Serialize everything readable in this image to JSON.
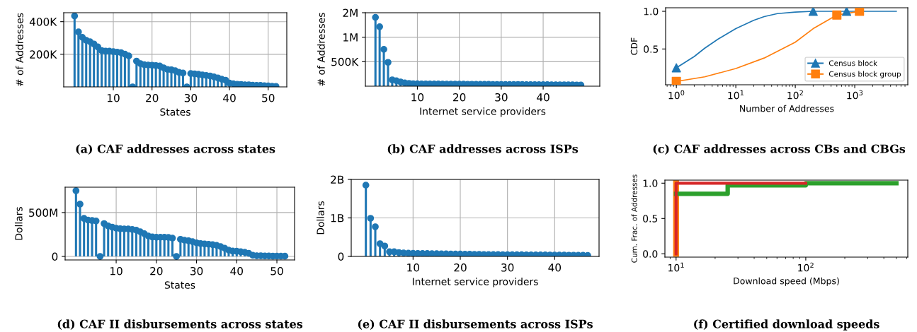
{
  "chart_data": [
    {
      "type": "lollipop",
      "title": "(a) CAF addresses across states",
      "xlabel": "States",
      "ylabel": "# of Addresses",
      "grid": true,
      "x": [
        0,
        1,
        2,
        3,
        4,
        5,
        6,
        7,
        8,
        9,
        10,
        11,
        12,
        13,
        14,
        15,
        16,
        17,
        18,
        19,
        20,
        21,
        22,
        23,
        24,
        25,
        26,
        27,
        28,
        29,
        30,
        31,
        32,
        33,
        34,
        35,
        36,
        37,
        38,
        39,
        40,
        41,
        42,
        43,
        44,
        45,
        46,
        47,
        48,
        49,
        50,
        51,
        52
      ],
      "values": [
        435000,
        337000,
        304000,
        286000,
        277000,
        263000,
        245000,
        223000,
        219000,
        219000,
        216000,
        213000,
        210000,
        201000,
        190000,
        0,
        158000,
        143000,
        136000,
        134000,
        133000,
        131000,
        128000,
        117000,
        107000,
        105000,
        99000,
        89000,
        85000,
        0,
        82000,
        80000,
        77000,
        73000,
        70000,
        67000,
        61000,
        55000,
        47000,
        41000,
        23000,
        19000,
        16000,
        15000,
        13000,
        12000,
        10000,
        9000,
        9000,
        7000,
        6000,
        4000,
        3000
      ],
      "color": "#1f77b4",
      "xlim": [
        -2.8,
        54.8
      ],
      "ylim": [
        0,
        455000
      ],
      "xticks": [
        10,
        20,
        30,
        40,
        50
      ],
      "yticks": [
        {
          "value": 200000,
          "label": "200K"
        },
        {
          "value": 400000,
          "label": "400K"
        }
      ]
    },
    {
      "type": "lollipop",
      "title": "(b) CAF addresses across ISPs",
      "xlabel": "Internet service providers",
      "ylabel": "# of Addresses",
      "grid": true,
      "x": [
        0,
        1,
        2,
        3,
        4,
        5,
        6,
        7,
        8,
        9,
        10,
        11,
        12,
        13,
        14,
        15,
        16,
        17,
        18,
        19,
        20,
        21,
        22,
        23,
        24,
        25,
        26,
        27,
        28,
        29,
        30,
        31,
        32,
        33,
        34,
        35,
        36,
        37,
        38,
        39,
        40,
        41,
        42,
        43,
        44,
        45,
        46,
        47,
        48,
        49
      ],
      "values": [
        1405000,
        1214000,
        752000,
        486000,
        129000,
        110000,
        86000,
        67000,
        57000,
        50000,
        48000,
        47000,
        46000,
        45000,
        44000,
        44000,
        43000,
        42000,
        41000,
        41000,
        40000,
        40000,
        39000,
        39000,
        38000,
        38000,
        37000,
        37000,
        36000,
        36000,
        35000,
        35000,
        34000,
        34000,
        33000,
        33000,
        32000,
        32000,
        31000,
        31000,
        30000,
        30000,
        29000,
        29000,
        28000,
        27000,
        27000,
        26000,
        25000,
        24000
      ],
      "color": "#1f77b4",
      "xlim": [
        -2.4,
        53.5
      ],
      "ylim": [
        0,
        1500000
      ],
      "xticks": [
        10,
        20,
        30,
        40
      ],
      "yticks": [
        {
          "value": 500000,
          "label": "500K"
        },
        {
          "value": 1000000,
          "label": "1M"
        },
        {
          "value": 1500000,
          "label": "2M"
        }
      ]
    },
    {
      "type": "line",
      "title": "(c) CAF addresses across CBs and CBGs",
      "xlabel": "Number of Addresses",
      "ylabel": "CDF",
      "log": "x",
      "legend": "bottom right",
      "series": [
        {
          "color": "#1f77b4",
          "x": [
            1,
            2,
            3,
            5,
            10,
            20,
            30,
            50,
            100,
            200,
            730,
            5000
          ],
          "values": [
            0.25,
            0.4,
            0.51,
            0.63,
            0.77,
            0.88,
            0.93,
            0.97,
            0.99,
            1.0,
            1.0,
            1.0
          ]
        },
        {
          "color": "#ff7f0e",
          "x": [
            1,
            3,
            10,
            30,
            100,
            200,
            500,
            1200
          ],
          "values": [
            0.07,
            0.13,
            0.24,
            0.38,
            0.59,
            0.77,
            0.95,
            1.0
          ]
        },
        {
          "type": "scatter",
          "name": "Census block",
          "color": "#1f77b4",
          "marker": "triangle",
          "x": [
            1,
            200,
            730
          ],
          "values": [
            0.25,
            1.0,
            1.0
          ]
        },
        {
          "type": "scatter",
          "name": "Census block group",
          "color": "#ff7f0e",
          "marker": "square",
          "x": [
            1,
            500,
            1200
          ],
          "values": [
            0.07,
            0.95,
            1.0
          ]
        }
      ],
      "xlim": [
        0.66,
        7800
      ],
      "ylim": [
        0.025,
        1.047
      ],
      "xticks": [
        {
          "value": 1,
          "label": "10$^{0}$"
        },
        {
          "value": 10,
          "label": "10$^{1}$"
        },
        {
          "value": 100,
          "label": "10$^{2}$"
        },
        {
          "value": 1000,
          "label": "10$^{3}$"
        }
      ],
      "yticks": [
        {
          "value": 0.5,
          "label": "0.5"
        },
        {
          "value": 1,
          "label": "1.0"
        }
      ]
    },
    {
      "type": "lollipop",
      "title": "(d) CAF II disbursements across states",
      "xlabel": "States",
      "ylabel": "Dollars",
      "grid": true,
      "x": [
        0,
        1,
        2,
        3,
        4,
        5,
        6,
        7,
        8,
        9,
        10,
        11,
        12,
        13,
        14,
        15,
        16,
        17,
        18,
        19,
        20,
        21,
        22,
        23,
        24,
        25,
        26,
        27,
        28,
        29,
        30,
        31,
        32,
        33,
        34,
        35,
        36,
        37,
        38,
        39,
        40,
        41,
        42,
        43,
        44,
        45,
        46,
        47,
        48,
        49,
        50,
        51,
        52
      ],
      "values": [
        749000000,
        596000000,
        433000000,
        414000000,
        409000000,
        404000000,
        0,
        374000000,
        348000000,
        334000000,
        321000000,
        316000000,
        313000000,
        313000000,
        307000000,
        299000000,
        281000000,
        259000000,
        233000000,
        222000000,
        219000000,
        219000000,
        219000000,
        217000000,
        209000000,
        0,
        195000000,
        184000000,
        179000000,
        168000000,
        155000000,
        147000000,
        142000000,
        139000000,
        134000000,
        126000000,
        112000000,
        94000000,
        72000000,
        61000000,
        59000000,
        53000000,
        48000000,
        35000000,
        13000000,
        8000000,
        7000000,
        6000000,
        5000000,
        4000000,
        4000000,
        3000000,
        3000000
      ],
      "color": "#1f77b4",
      "xlim": [
        -2.7,
        54.4
      ],
      "ylim": [
        -40000000,
        789000000
      ],
      "xticks": [
        10,
        20,
        30,
        40,
        50
      ],
      "yticks": [
        0,
        {
          "value": 500000000,
          "label": "500M"
        }
      ]
    },
    {
      "type": "lollipop",
      "title": "(e) CAF II disbursements across ISPs",
      "xlabel": "Internet service providers",
      "ylabel": "Dollars",
      "grid": true,
      "x": [
        0,
        1,
        2,
        3,
        4,
        5,
        6,
        7,
        8,
        9,
        10,
        11,
        12,
        13,
        14,
        15,
        16,
        17,
        18,
        19,
        20,
        21,
        22,
        23,
        24,
        25,
        26,
        27,
        28,
        29,
        30,
        31,
        32,
        33,
        34,
        35,
        36,
        37,
        38,
        39,
        40,
        41,
        42,
        43,
        44,
        45,
        46,
        47
      ],
      "values": [
        1850000000,
        990000000,
        770000000,
        330000000,
        270000000,
        120000000,
        120000000,
        100000000,
        90000000,
        85000000,
        80000000,
        78000000,
        76000000,
        74000000,
        72000000,
        70000000,
        68000000,
        66000000,
        64000000,
        62000000,
        60000000,
        58000000,
        56000000,
        54000000,
        52000000,
        50000000,
        49000000,
        48000000,
        47000000,
        46000000,
        45000000,
        44000000,
        43000000,
        42000000,
        41000000,
        40000000,
        39000000,
        38000000,
        37000000,
        36000000,
        35000000,
        34000000,
        33000000,
        32000000,
        31000000,
        30000000,
        28000000,
        25000000
      ],
      "color": "#1f77b4",
      "xlim": [
        -3.1,
        49.4
      ],
      "ylim": [
        0,
        2000000000
      ],
      "xticks": [
        10,
        20,
        30,
        40
      ],
      "yticks": [
        0,
        {
          "value": 1000000000,
          "label": "1B"
        },
        {
          "value": 2000000000,
          "label": "2B"
        }
      ]
    },
    {
      "type": "line",
      "title": "(f) Certified download speeds",
      "xlabel": "Download speed (Mbps)",
      "ylabel": "Cum. Frac. of Addresses",
      "log": "x",
      "series": [
        {
          "color": "#ff7f0e",
          "x": [
            10,
            10
          ],
          "values": [
            0,
            1
          ]
        },
        {
          "color": "#2ca02c",
          "x": [
            10,
            25,
            25,
            100,
            100,
            500
          ],
          "values": [
            0.85,
            0.85,
            0.97,
            0.97,
            1,
            1
          ]
        },
        {
          "color": "#d62728",
          "x": [
            10,
            10,
            100
          ],
          "values": [
            0,
            1,
            1
          ]
        }
      ],
      "xlim": [
        8.2,
        612
      ],
      "ylim": [
        -0.047,
        1.043
      ],
      "xticks": [
        {
          "value": 10,
          "label": "10$^{1}$"
        },
        {
          "value": 100,
          "label": "10$^{2}$"
        }
      ],
      "yticks": [
        {
          "value": 0,
          "label": "0.0"
        },
        {
          "value": 0.5,
          "label": "0.5"
        },
        {
          "value": 1,
          "label": "1.0"
        }
      ]
    }
  ]
}
